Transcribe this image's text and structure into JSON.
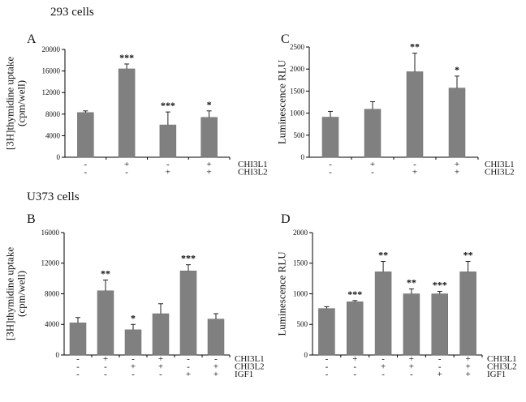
{
  "sections": [
    {
      "title": "293 cells"
    },
    {
      "title": "U373 cells"
    }
  ],
  "colors": {
    "bar": "#808080",
    "bar_edge": "#6e6e6e",
    "axis": "#000000"
  },
  "chart_data": [
    {
      "type": "bar",
      "panel_label": "A",
      "ylabel": "[3H]thymidine uptake\n(cpm/well)",
      "ylim": [
        0,
        20000
      ],
      "yticks": [
        0,
        4000,
        8000,
        12000,
        16000,
        20000
      ],
      "categories": [
        "1",
        "2",
        "3",
        "4"
      ],
      "values": [
        8300,
        16400,
        6000,
        7400
      ],
      "errors": [
        300,
        900,
        2400,
        1200
      ],
      "significance": [
        "",
        "***",
        "***",
        "*"
      ],
      "conditions": [
        {
          "name": "CHI3L1",
          "signs": [
            "-",
            "+",
            "-",
            "+"
          ]
        },
        {
          "name": "CHI3L2",
          "signs": [
            "-",
            "-",
            "+",
            "+"
          ]
        }
      ]
    },
    {
      "type": "bar",
      "panel_label": "C",
      "ylabel": "Luminescence RLU",
      "ylim": [
        0,
        2500
      ],
      "yticks": [
        0,
        500,
        1000,
        1500,
        2000,
        2500
      ],
      "categories": [
        "1",
        "2",
        "3",
        "4"
      ],
      "values": [
        910,
        1090,
        1940,
        1570
      ],
      "errors": [
        130,
        170,
        420,
        270
      ],
      "significance": [
        "",
        "",
        "**",
        "*"
      ],
      "conditions": [
        {
          "name": "CHI3L1",
          "signs": [
            "-",
            "+",
            "-",
            "+"
          ]
        },
        {
          "name": "CHI3L2",
          "signs": [
            "-",
            "-",
            "+",
            "+"
          ]
        }
      ]
    },
    {
      "type": "bar",
      "panel_label": "B",
      "ylabel": "[3H]thymidine uptake\n(cpm/well)",
      "ylim": [
        0,
        16000
      ],
      "yticks": [
        0,
        4000,
        8000,
        12000,
        16000
      ],
      "categories": [
        "1",
        "2",
        "3",
        "4",
        "5",
        "6"
      ],
      "values": [
        4200,
        8400,
        3300,
        5400,
        11000,
        4700
      ],
      "errors": [
        700,
        1400,
        700,
        1300,
        800,
        700
      ],
      "significance": [
        "",
        "**",
        "*",
        "",
        "***",
        ""
      ],
      "conditions": [
        {
          "name": "CHI3L1",
          "signs": [
            "-",
            "+",
            "-",
            "+",
            "-",
            "-"
          ]
        },
        {
          "name": "CHI3L2",
          "signs": [
            "-",
            "-",
            "+",
            "+",
            "-",
            "+"
          ]
        },
        {
          "name": "IGF1",
          "signs": [
            "-",
            "-",
            "-",
            "-",
            "+",
            "+"
          ]
        }
      ]
    },
    {
      "type": "bar",
      "panel_label": "D",
      "ylabel": "Luminescence RLU",
      "ylim": [
        0,
        2000
      ],
      "yticks": [
        0,
        500,
        1000,
        1500,
        2000
      ],
      "categories": [
        "1",
        "2",
        "3",
        "4",
        "5",
        "6"
      ],
      "values": [
        760,
        870,
        1360,
        1000,
        1000,
        1360
      ],
      "errors": [
        30,
        20,
        170,
        80,
        40,
        170
      ],
      "significance": [
        "",
        "***",
        "**",
        "**",
        "***",
        "**"
      ],
      "conditions": [
        {
          "name": "CHI3L1",
          "signs": [
            "-",
            "+",
            "-",
            "+",
            "-",
            "+"
          ]
        },
        {
          "name": "CHI3L2",
          "signs": [
            "-",
            "-",
            "+",
            "+",
            "-",
            "+"
          ]
        },
        {
          "name": "IGF1",
          "signs": [
            "-",
            "-",
            "-",
            "-",
            "+",
            "+"
          ]
        }
      ]
    }
  ]
}
